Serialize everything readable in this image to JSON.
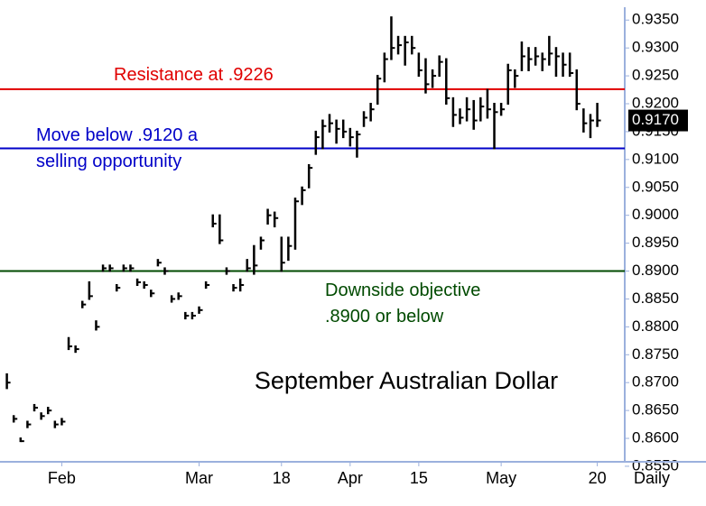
{
  "chart_data": {
    "type": "ohlc",
    "title": "September Australian Dollar",
    "x_label": "Daily",
    "x": [
      0,
      1,
      2,
      3,
      4,
      5,
      6,
      7,
      8,
      9,
      10,
      11,
      12,
      13,
      14,
      15,
      16,
      17,
      18,
      19,
      20,
      21,
      22,
      23,
      24,
      25,
      26,
      27,
      28,
      29,
      30,
      31,
      32,
      33,
      34,
      35,
      36,
      37,
      38,
      39,
      40,
      41,
      42,
      43,
      44,
      45,
      46,
      47,
      48,
      49,
      50,
      51,
      52,
      53,
      54,
      55,
      56,
      57,
      58,
      59,
      60,
      61,
      62,
      63,
      64,
      65,
      66,
      67,
      68,
      69,
      70,
      71,
      72,
      73,
      74,
      75,
      76,
      77,
      78,
      79,
      80,
      81,
      82,
      83,
      84,
      85,
      86
    ],
    "series": [
      {
        "color": "#000000",
        "high": [
          0.8715,
          0.864,
          0.86,
          0.863,
          0.866,
          0.8645,
          0.8655,
          0.863,
          0.8635,
          0.878,
          0.8765,
          0.8845,
          0.888,
          0.881,
          0.891,
          0.891,
          0.8875,
          0.891,
          0.891,
          0.8885,
          0.888,
          0.8865,
          0.892,
          0.8905,
          0.8855,
          0.886,
          0.8825,
          0.8825,
          0.8835,
          0.888,
          0.9,
          0.9,
          0.8905,
          0.8875,
          0.8885,
          0.892,
          0.8945,
          0.896,
          0.901,
          0.9005,
          0.896,
          0.896,
          0.903,
          0.905,
          0.909,
          0.915,
          0.917,
          0.918,
          0.917,
          0.917,
          0.9155,
          0.915,
          0.9185,
          0.92,
          0.925,
          0.929,
          0.9355,
          0.932,
          0.932,
          0.932,
          0.929,
          0.928,
          0.926,
          0.9285,
          0.928,
          0.921,
          0.919,
          0.921,
          0.9205,
          0.921,
          0.9225,
          0.92,
          0.92,
          0.927,
          0.926,
          0.931,
          0.93,
          0.93,
          0.929,
          0.932,
          0.93,
          0.929,
          0.929,
          0.926,
          0.919,
          0.918,
          0.92
        ],
        "low": [
          0.869,
          0.863,
          0.8595,
          0.862,
          0.865,
          0.8635,
          0.8645,
          0.862,
          0.8625,
          0.876,
          0.8755,
          0.8835,
          0.885,
          0.8795,
          0.89,
          0.89,
          0.8865,
          0.89,
          0.89,
          0.8875,
          0.887,
          0.8855,
          0.891,
          0.8895,
          0.8845,
          0.885,
          0.8815,
          0.8815,
          0.8825,
          0.887,
          0.898,
          0.895,
          0.8895,
          0.8865,
          0.8865,
          0.89,
          0.8895,
          0.894,
          0.8985,
          0.898,
          0.89,
          0.892,
          0.894,
          0.902,
          0.905,
          0.911,
          0.912,
          0.915,
          0.913,
          0.914,
          0.9125,
          0.9105,
          0.916,
          0.917,
          0.92,
          0.924,
          0.928,
          0.929,
          0.927,
          0.929,
          0.925,
          0.922,
          0.923,
          0.925,
          0.92,
          0.916,
          0.9165,
          0.917,
          0.9155,
          0.917,
          0.9175,
          0.912,
          0.918,
          0.92,
          0.923,
          0.926,
          0.926,
          0.927,
          0.926,
          0.927,
          0.925,
          0.925,
          0.925,
          0.919,
          0.915,
          0.914,
          0.916
        ],
        "close": [
          0.87,
          0.8635,
          0.8595,
          0.8625,
          0.8655,
          0.864,
          0.865,
          0.8625,
          0.863,
          0.8765,
          0.876,
          0.884,
          0.8855,
          0.88,
          0.8905,
          0.8905,
          0.887,
          0.8905,
          0.8905,
          0.888,
          0.8875,
          0.886,
          0.8915,
          0.89,
          0.885,
          0.8855,
          0.882,
          0.882,
          0.883,
          0.8875,
          0.8985,
          0.8955,
          0.89,
          0.887,
          0.8875,
          0.8905,
          0.891,
          0.8955,
          0.9,
          0.8995,
          0.8915,
          0.8945,
          0.9025,
          0.9045,
          0.9085,
          0.914,
          0.916,
          0.9165,
          0.9155,
          0.915,
          0.914,
          0.9145,
          0.9175,
          0.919,
          0.9245,
          0.928,
          0.93,
          0.9305,
          0.931,
          0.93,
          0.926,
          0.9235,
          0.925,
          0.9275,
          0.921,
          0.918,
          0.9175,
          0.919,
          0.917,
          0.9195,
          0.919,
          0.9185,
          0.919,
          0.926,
          0.925,
          0.9285,
          0.928,
          0.9285,
          0.928,
          0.929,
          0.9285,
          0.927,
          0.9255,
          0.92,
          0.9165,
          0.917,
          0.917
        ]
      }
    ],
    "xlim": [
      -1,
      90
    ],
    "xticks": [
      {
        "value": 8,
        "label": "Feb"
      },
      {
        "value": 28,
        "label": "Mar"
      },
      {
        "value": 40,
        "label": "18"
      },
      {
        "value": 50,
        "label": "Apr"
      },
      {
        "value": 60,
        "label": "15"
      },
      {
        "value": 72,
        "label": "May"
      },
      {
        "value": 86,
        "label": "20"
      }
    ],
    "ylim": [
      0.8558,
      0.9386
    ],
    "yticks": [
      {
        "value": 0.855,
        "label": "0.8550"
      },
      {
        "value": 0.86,
        "label": "0.8600"
      },
      {
        "value": 0.865,
        "label": "0.8650"
      },
      {
        "value": 0.87,
        "label": "0.8700"
      },
      {
        "value": 0.875,
        "label": "0.8750"
      },
      {
        "value": 0.88,
        "label": "0.8800"
      },
      {
        "value": 0.885,
        "label": "0.8850"
      },
      {
        "value": 0.89,
        "label": "0.8900"
      },
      {
        "value": 0.895,
        "label": "0.8950"
      },
      {
        "value": 0.9,
        "label": "0.9000"
      },
      {
        "value": 0.905,
        "label": "0.9050"
      },
      {
        "value": 0.91,
        "label": "0.9100"
      },
      {
        "value": 0.915,
        "label": "0.9150"
      },
      {
        "value": 0.92,
        "label": "0.9200"
      },
      {
        "value": 0.925,
        "label": "0.9250"
      },
      {
        "value": 0.93,
        "label": "0.9300"
      },
      {
        "value": 0.935,
        "label": "0.9350"
      }
    ],
    "last_price": {
      "value": 0.917,
      "label": "0.9170"
    },
    "hlines": [
      {
        "value": 0.9226,
        "color": "#e00000",
        "text": [
          "Resistance at .9226"
        ]
      },
      {
        "value": 0.912,
        "color": "#0000c8",
        "text": [
          "Move below .9120 a",
          "selling opportunity"
        ]
      },
      {
        "value": 0.89,
        "color": "#004a00",
        "text": [
          "Downside objective",
          ".8900 or below"
        ]
      }
    ]
  }
}
